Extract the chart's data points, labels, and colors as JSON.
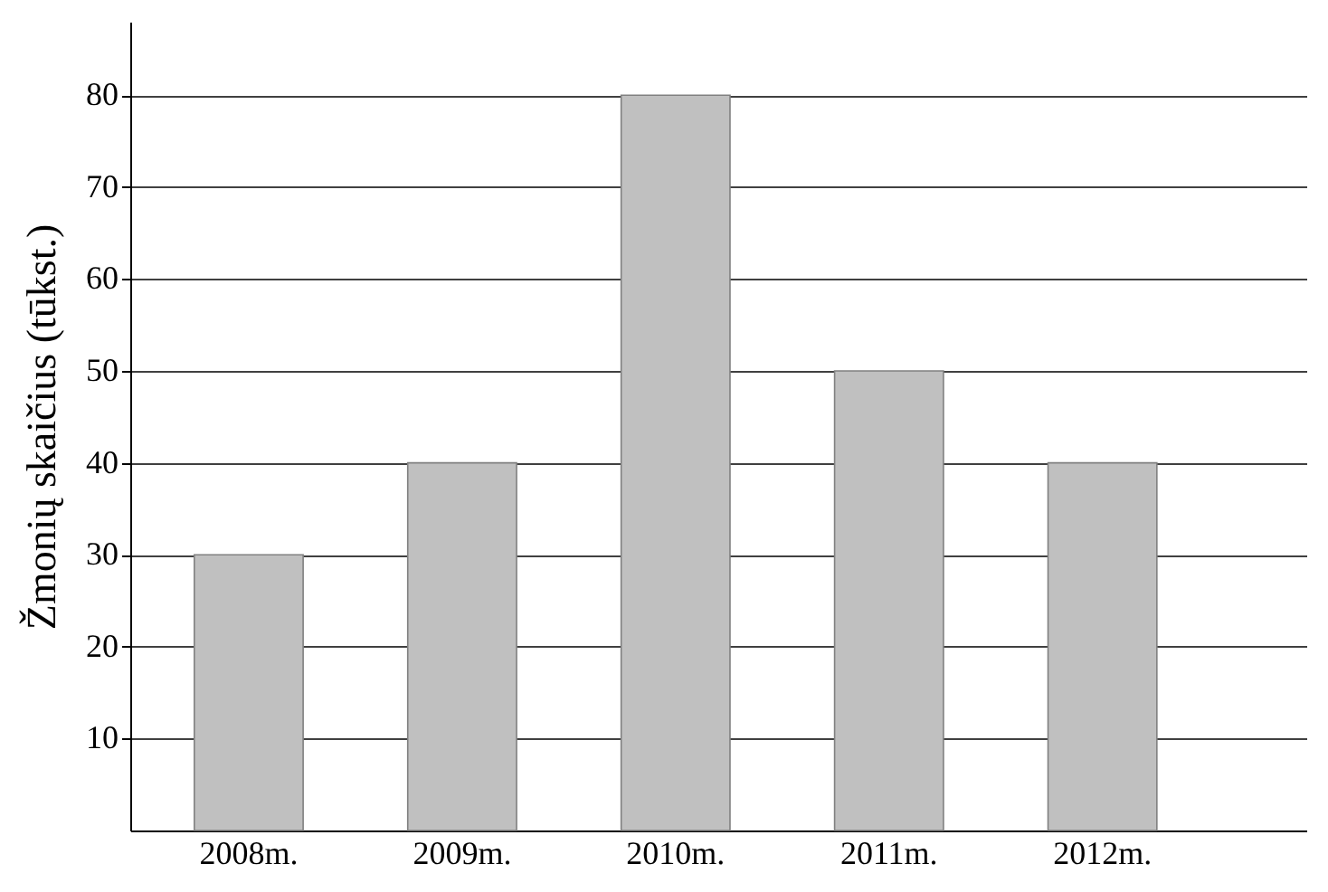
{
  "chart_data": {
    "type": "bar",
    "ylabel": "Žmonių skaičius (tūkst.)",
    "categories": [
      "2008m.",
      "2009m.",
      "2010m.",
      "2011m.",
      "2012m."
    ],
    "values": [
      30,
      40,
      80,
      50,
      40
    ],
    "color": "#c0c0c0",
    "ylim": [
      0,
      88
    ],
    "yticks": [
      10,
      20,
      30,
      40,
      50,
      60,
      70,
      80
    ],
    "grid": "y"
  }
}
